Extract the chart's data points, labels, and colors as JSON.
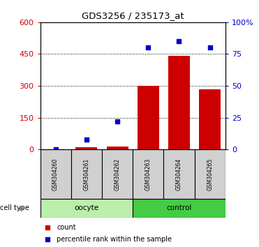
{
  "title": "GDS3256 / 235173_at",
  "samples": [
    "GSM304260",
    "GSM304261",
    "GSM304262",
    "GSM304263",
    "GSM304264",
    "GSM304265"
  ],
  "count_values": [
    0,
    10,
    15,
    300,
    440,
    285
  ],
  "percentile_values": [
    0,
    8,
    22,
    80,
    85,
    80
  ],
  "left_yticks": [
    0,
    150,
    300,
    450,
    600
  ],
  "right_yticks": [
    0,
    25,
    50,
    75,
    100
  ],
  "left_ylim": [
    0,
    600
  ],
  "right_ylim": [
    0,
    100
  ],
  "bar_color": "#cc0000",
  "dot_color": "#0000cc",
  "left_tick_color": "#cc0000",
  "right_tick_color": "#0000cc",
  "cell_types": [
    {
      "label": "oocyte",
      "indices": [
        0,
        1,
        2
      ],
      "color": "#bbeeaa"
    },
    {
      "label": "control",
      "indices": [
        3,
        4,
        5
      ],
      "color": "#44cc44"
    }
  ],
  "cell_type_label": "cell type",
  "legend_count": "count",
  "legend_percentile": "percentile rank within the sample",
  "grid_color": "black",
  "bar_width": 0.7,
  "sample_box_color": "#d0d0d0"
}
